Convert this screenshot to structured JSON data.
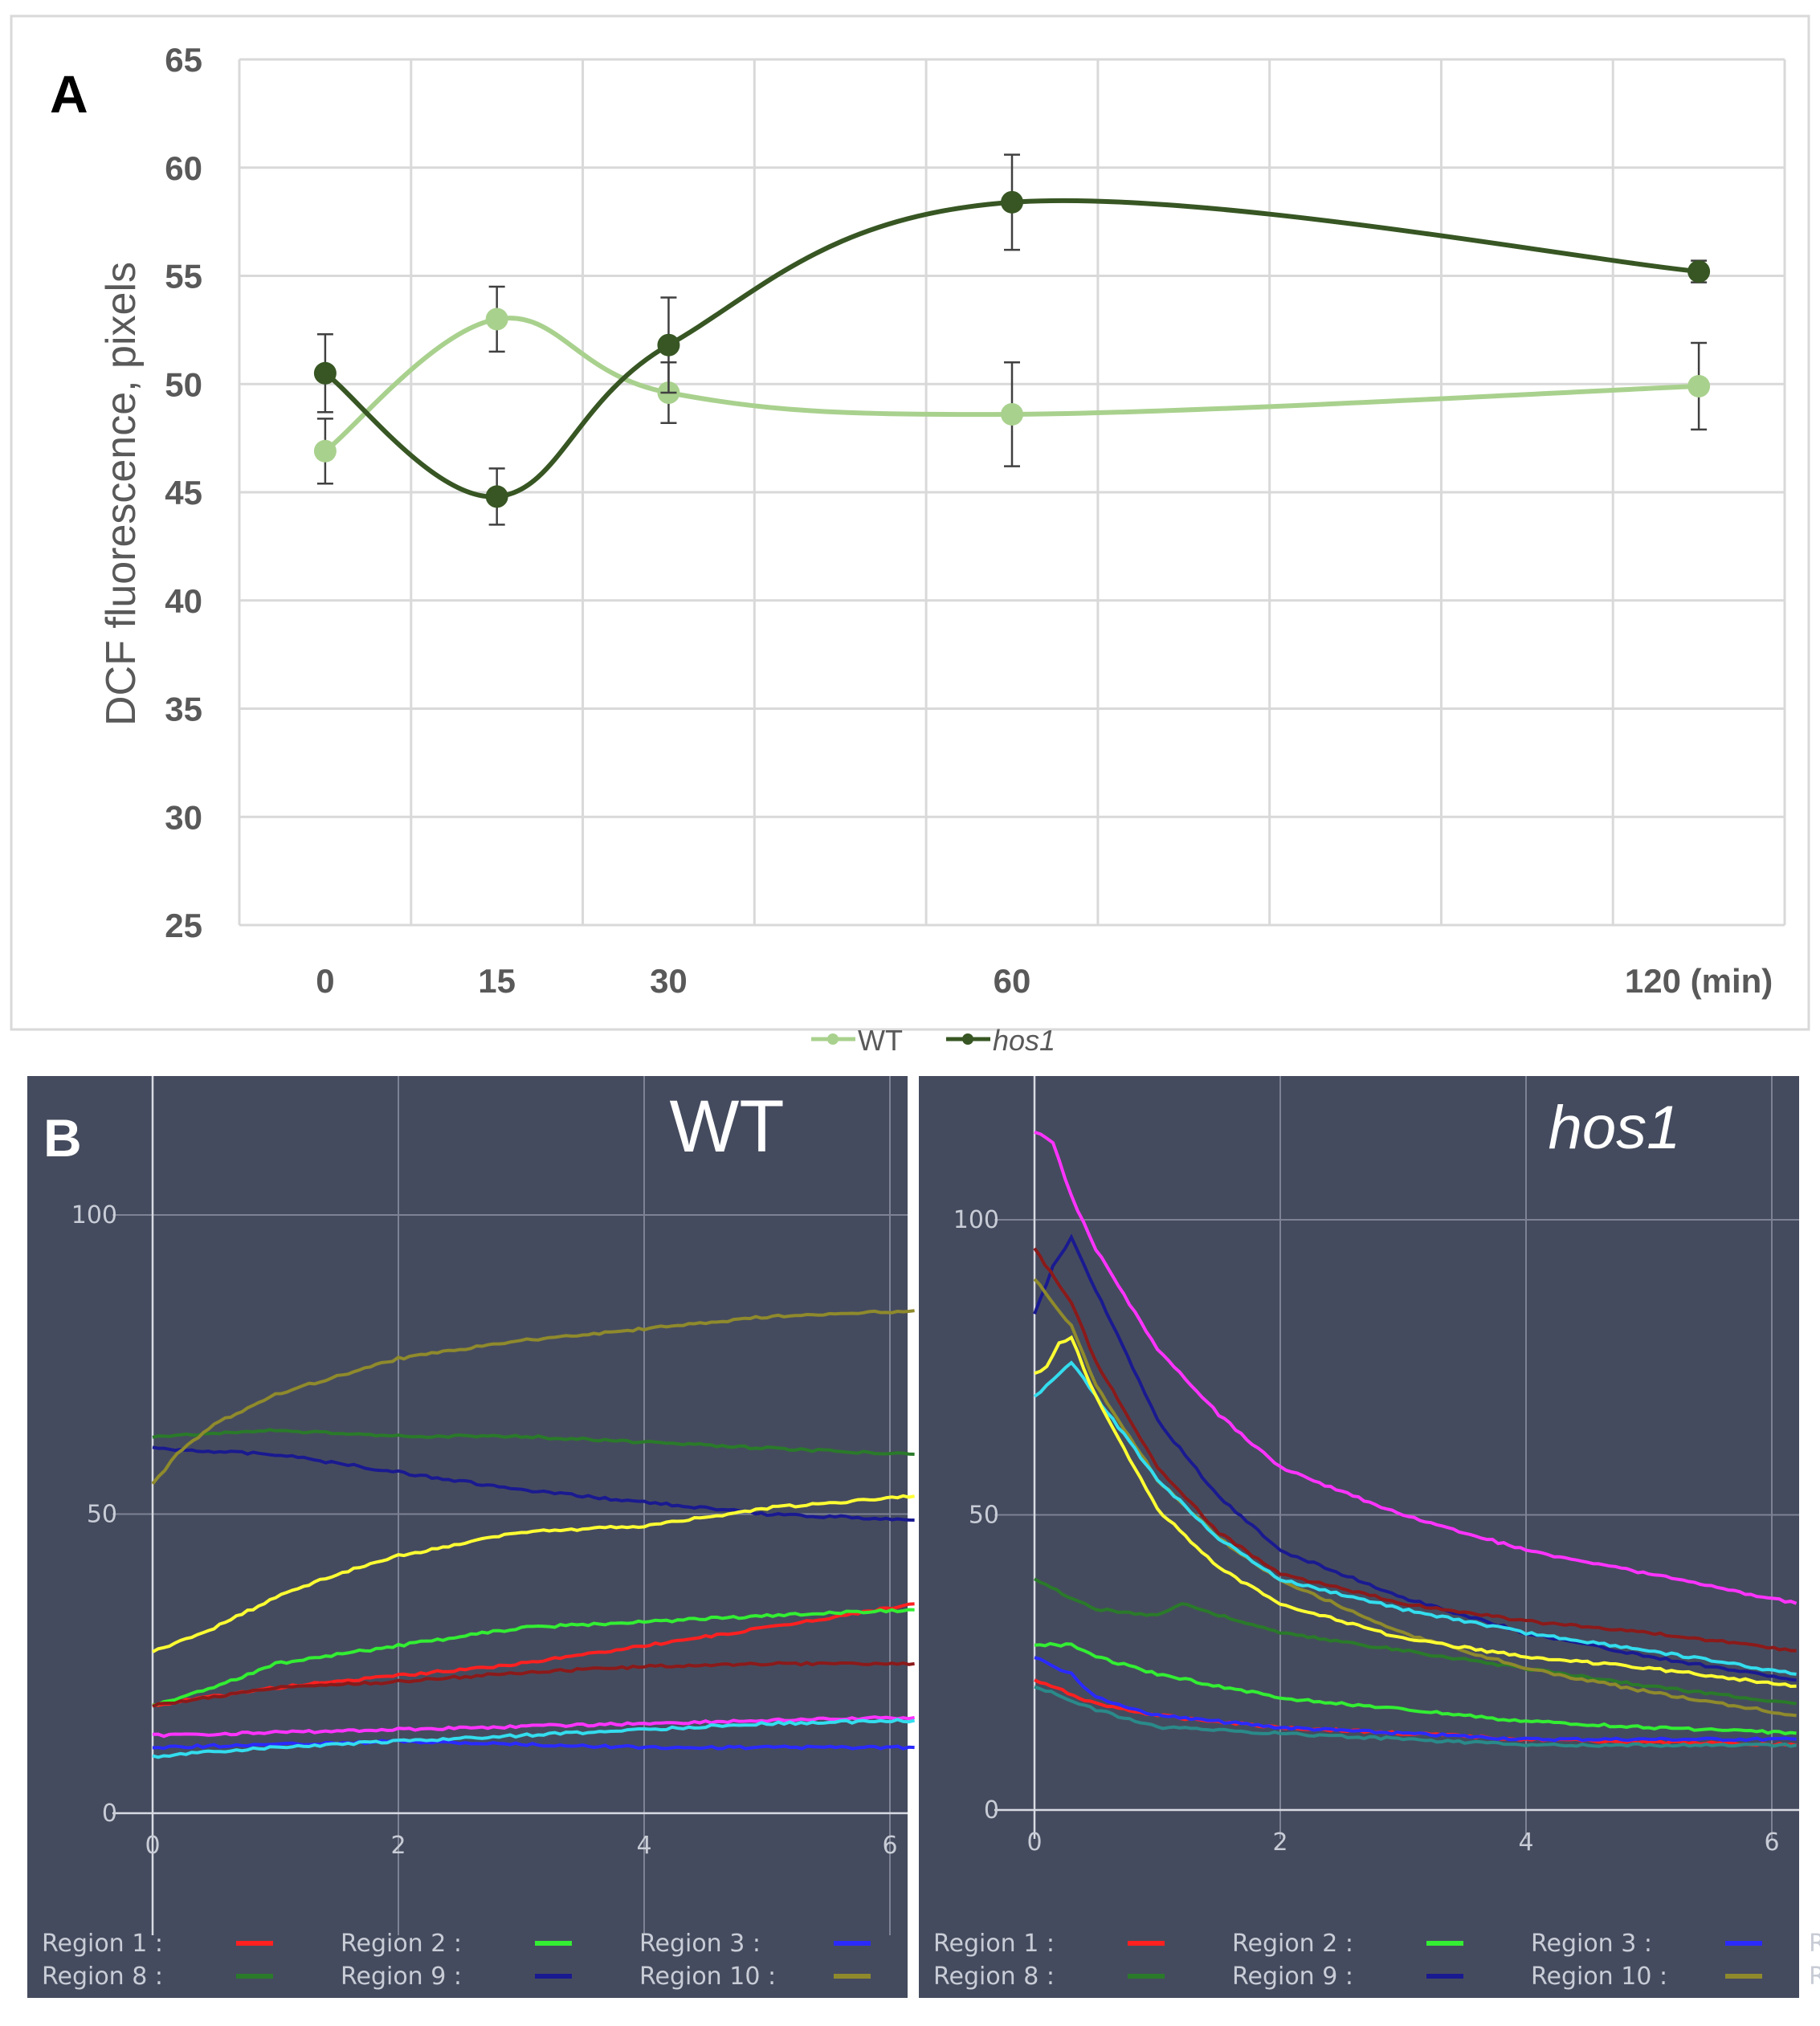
{
  "chart_data": [
    {
      "panel_label": "A",
      "type": "line",
      "ylabel": "DCF fluorescence, pixels",
      "ylim": [
        25,
        65
      ],
      "yticks": [
        "25",
        "30",
        "35",
        "40",
        "45",
        "50",
        "55",
        "60",
        "65"
      ],
      "xticks": [
        "0",
        "15",
        "30",
        "60",
        "120 (min)"
      ],
      "grid": true,
      "legend_position": "bottom",
      "series": [
        {
          "name": "WT",
          "name_italic": false,
          "color": "#a9d18e",
          "x": [
            0,
            15,
            30,
            60,
            120
          ],
          "values": [
            46.9,
            53.0,
            49.6,
            48.6,
            49.9
          ],
          "errors": [
            1.5,
            1.5,
            1.4,
            2.4,
            2.0
          ]
        },
        {
          "name": "hos1",
          "name_italic": true,
          "color": "#375623",
          "x": [
            0,
            15,
            30,
            60,
            120
          ],
          "values": [
            50.5,
            44.8,
            51.8,
            58.4,
            55.2
          ],
          "errors": [
            1.8,
            1.3,
            2.2,
            2.2,
            0.5
          ]
        }
      ]
    },
    {
      "panel_label": "B",
      "title": "WT",
      "title_italic": false,
      "type": "line",
      "background": "#454b5e",
      "xlim": [
        0,
        6.2
      ],
      "ylim": [
        0,
        115
      ],
      "xticks": [
        "0",
        "2",
        "4",
        "6"
      ],
      "yticks": [
        "0",
        "50",
        "100"
      ],
      "series": [
        {
          "name": "Region 1 :",
          "color": "#ff2020",
          "x": [
            0,
            1,
            2,
            3,
            4,
            5,
            6.2
          ],
          "values": [
            18,
            21,
            23,
            25,
            28,
            31,
            35
          ]
        },
        {
          "name": "Region 2 :",
          "color": "#33ee33",
          "x": [
            0,
            0.5,
            1,
            2,
            3,
            4,
            5,
            6.2
          ],
          "values": [
            18,
            21,
            25,
            28,
            31,
            32,
            33,
            34
          ]
        },
        {
          "name": "Region 3 :",
          "color": "#2a2aff",
          "x": [
            0,
            1,
            2,
            3,
            4,
            6.2
          ],
          "values": [
            11,
            11.5,
            12,
            11.5,
            11,
            11
          ]
        },
        {
          "name": "Region 8 :",
          "color": "#2a7a2a",
          "x": [
            0,
            1,
            2,
            3,
            4,
            5,
            6.2
          ],
          "values": [
            63,
            64,
            63,
            63,
            62,
            61,
            60
          ]
        },
        {
          "name": "Region 9 :",
          "color": "#1a1a90",
          "x": [
            0,
            1,
            2,
            3,
            4,
            5,
            6.2
          ],
          "values": [
            61,
            60,
            57,
            54,
            52,
            50,
            49
          ]
        },
        {
          "name": "Region 10 :",
          "color": "#8f8a2c",
          "x": [
            0,
            0.2,
            0.5,
            1,
            1.5,
            2,
            3,
            4,
            5,
            6.2
          ],
          "values": [
            55,
            60,
            65,
            70,
            73,
            76,
            79,
            81,
            83,
            84
          ]
        },
        {
          "name": "",
          "color": "#ffff33",
          "x": [
            0,
            0.5,
            1,
            1.5,
            2,
            3,
            4,
            5,
            6.2
          ],
          "values": [
            27,
            31,
            36,
            40,
            43,
            47,
            48,
            51,
            53
          ]
        },
        {
          "name": "",
          "color": "#8b1a1a",
          "x": [
            0,
            1,
            2,
            3,
            4,
            5,
            6.2
          ],
          "values": [
            18,
            21,
            22,
            23.5,
            24.5,
            25,
            25
          ]
        },
        {
          "name": "",
          "color": "#ff33ff",
          "x": [
            0,
            1,
            2,
            3,
            4,
            5,
            6.2
          ],
          "values": [
            13,
            13.5,
            14,
            14.5,
            15,
            15.5,
            16
          ]
        },
        {
          "name": "",
          "color": "#33ddee",
          "x": [
            0,
            1,
            2,
            3,
            4,
            5,
            6.2
          ],
          "values": [
            9.5,
            11,
            12,
            13,
            14,
            15,
            15.5
          ]
        }
      ],
      "legend_clipped": []
    },
    {
      "title": "hos1",
      "title_italic": true,
      "type": "line",
      "background": "#454b5e",
      "xlim": [
        0,
        6.2
      ],
      "ylim": [
        0,
        115
      ],
      "xticks": [
        "0",
        "2",
        "4",
        "6"
      ],
      "yticks": [
        "0",
        "50",
        "100"
      ],
      "series": [
        {
          "name": "Region 1 :",
          "color": "#ff2020",
          "x": [
            0,
            0.5,
            1,
            2,
            3,
            4,
            5,
            6.2
          ],
          "values": [
            22,
            18,
            16,
            14,
            13,
            12,
            11.5,
            11
          ]
        },
        {
          "name": "Region 2 :",
          "color": "#33ee33",
          "x": [
            0,
            0.3,
            0.5,
            1,
            2,
            3,
            4,
            5,
            6.2
          ],
          "values": [
            28,
            28,
            26,
            23,
            19,
            17,
            15,
            14,
            13
          ]
        },
        {
          "name": "Region 3 :",
          "color": "#2a2aff",
          "x": [
            0,
            0.3,
            0.5,
            1,
            2,
            3,
            4,
            6.2
          ],
          "values": [
            26,
            23,
            19,
            16,
            14,
            13,
            12,
            12
          ]
        },
        {
          "name": "Region 8 :",
          "color": "#2a7a2a",
          "x": [
            0,
            0.5,
            1,
            1.2,
            1.5,
            2,
            3,
            4,
            5,
            6.2
          ],
          "values": [
            39,
            34,
            33,
            35,
            33,
            30,
            27,
            24,
            21,
            18
          ]
        },
        {
          "name": "Region 9 :",
          "color": "#1a1a90",
          "x": [
            0,
            0.15,
            0.3,
            0.5,
            0.8,
            1,
            1.5,
            2,
            3,
            4,
            5,
            6.2
          ],
          "values": [
            84,
            92,
            97,
            88,
            75,
            66,
            53,
            44,
            36,
            30,
            26,
            22
          ]
        },
        {
          "name": "Region 10 :",
          "color": "#8f8a2c",
          "x": [
            0,
            0.3,
            0.5,
            1,
            1.5,
            2,
            3,
            4,
            5,
            6.2
          ],
          "values": [
            90,
            82,
            72,
            56,
            46,
            39,
            30,
            24,
            20,
            16
          ]
        },
        {
          "name": "",
          "color": "#ff33ff",
          "x": [
            0,
            0.15,
            0.3,
            0.5,
            1,
            1.5,
            2,
            3,
            4,
            5,
            6.2
          ],
          "values": [
            115,
            113,
            104,
            95,
            78,
            67,
            58,
            50,
            44,
            40,
            35
          ]
        },
        {
          "name": "",
          "color": "#8b1a1a",
          "x": [
            0,
            0.3,
            0.5,
            1,
            1.5,
            2,
            3,
            4,
            5,
            6.2
          ],
          "values": [
            95,
            86,
            76,
            58,
            47,
            40,
            35,
            32,
            30,
            27
          ]
        },
        {
          "name": "",
          "color": "#33ddee",
          "x": [
            0,
            0.15,
            0.3,
            0.5,
            1,
            1.5,
            2,
            3,
            4,
            5,
            6.2
          ],
          "values": [
            70,
            73,
            76,
            70,
            56,
            46,
            39,
            34,
            30,
            27,
            23
          ]
        },
        {
          "name": "",
          "color": "#ffff33",
          "x": [
            0,
            0.1,
            0.2,
            0.3,
            0.5,
            1,
            1.5,
            2,
            3,
            4,
            5,
            6.2
          ],
          "values": [
            74,
            75,
            79,
            80,
            70,
            51,
            41,
            35,
            29,
            26,
            24,
            21
          ]
        },
        {
          "name": "",
          "color": "#2a8a8a",
          "x": [
            0,
            0.5,
            1,
            2,
            3,
            4,
            6.2
          ],
          "values": [
            21,
            17,
            14,
            13,
            12,
            11,
            11
          ]
        }
      ],
      "legend_clipped": [
        "Re",
        "Re"
      ]
    }
  ]
}
